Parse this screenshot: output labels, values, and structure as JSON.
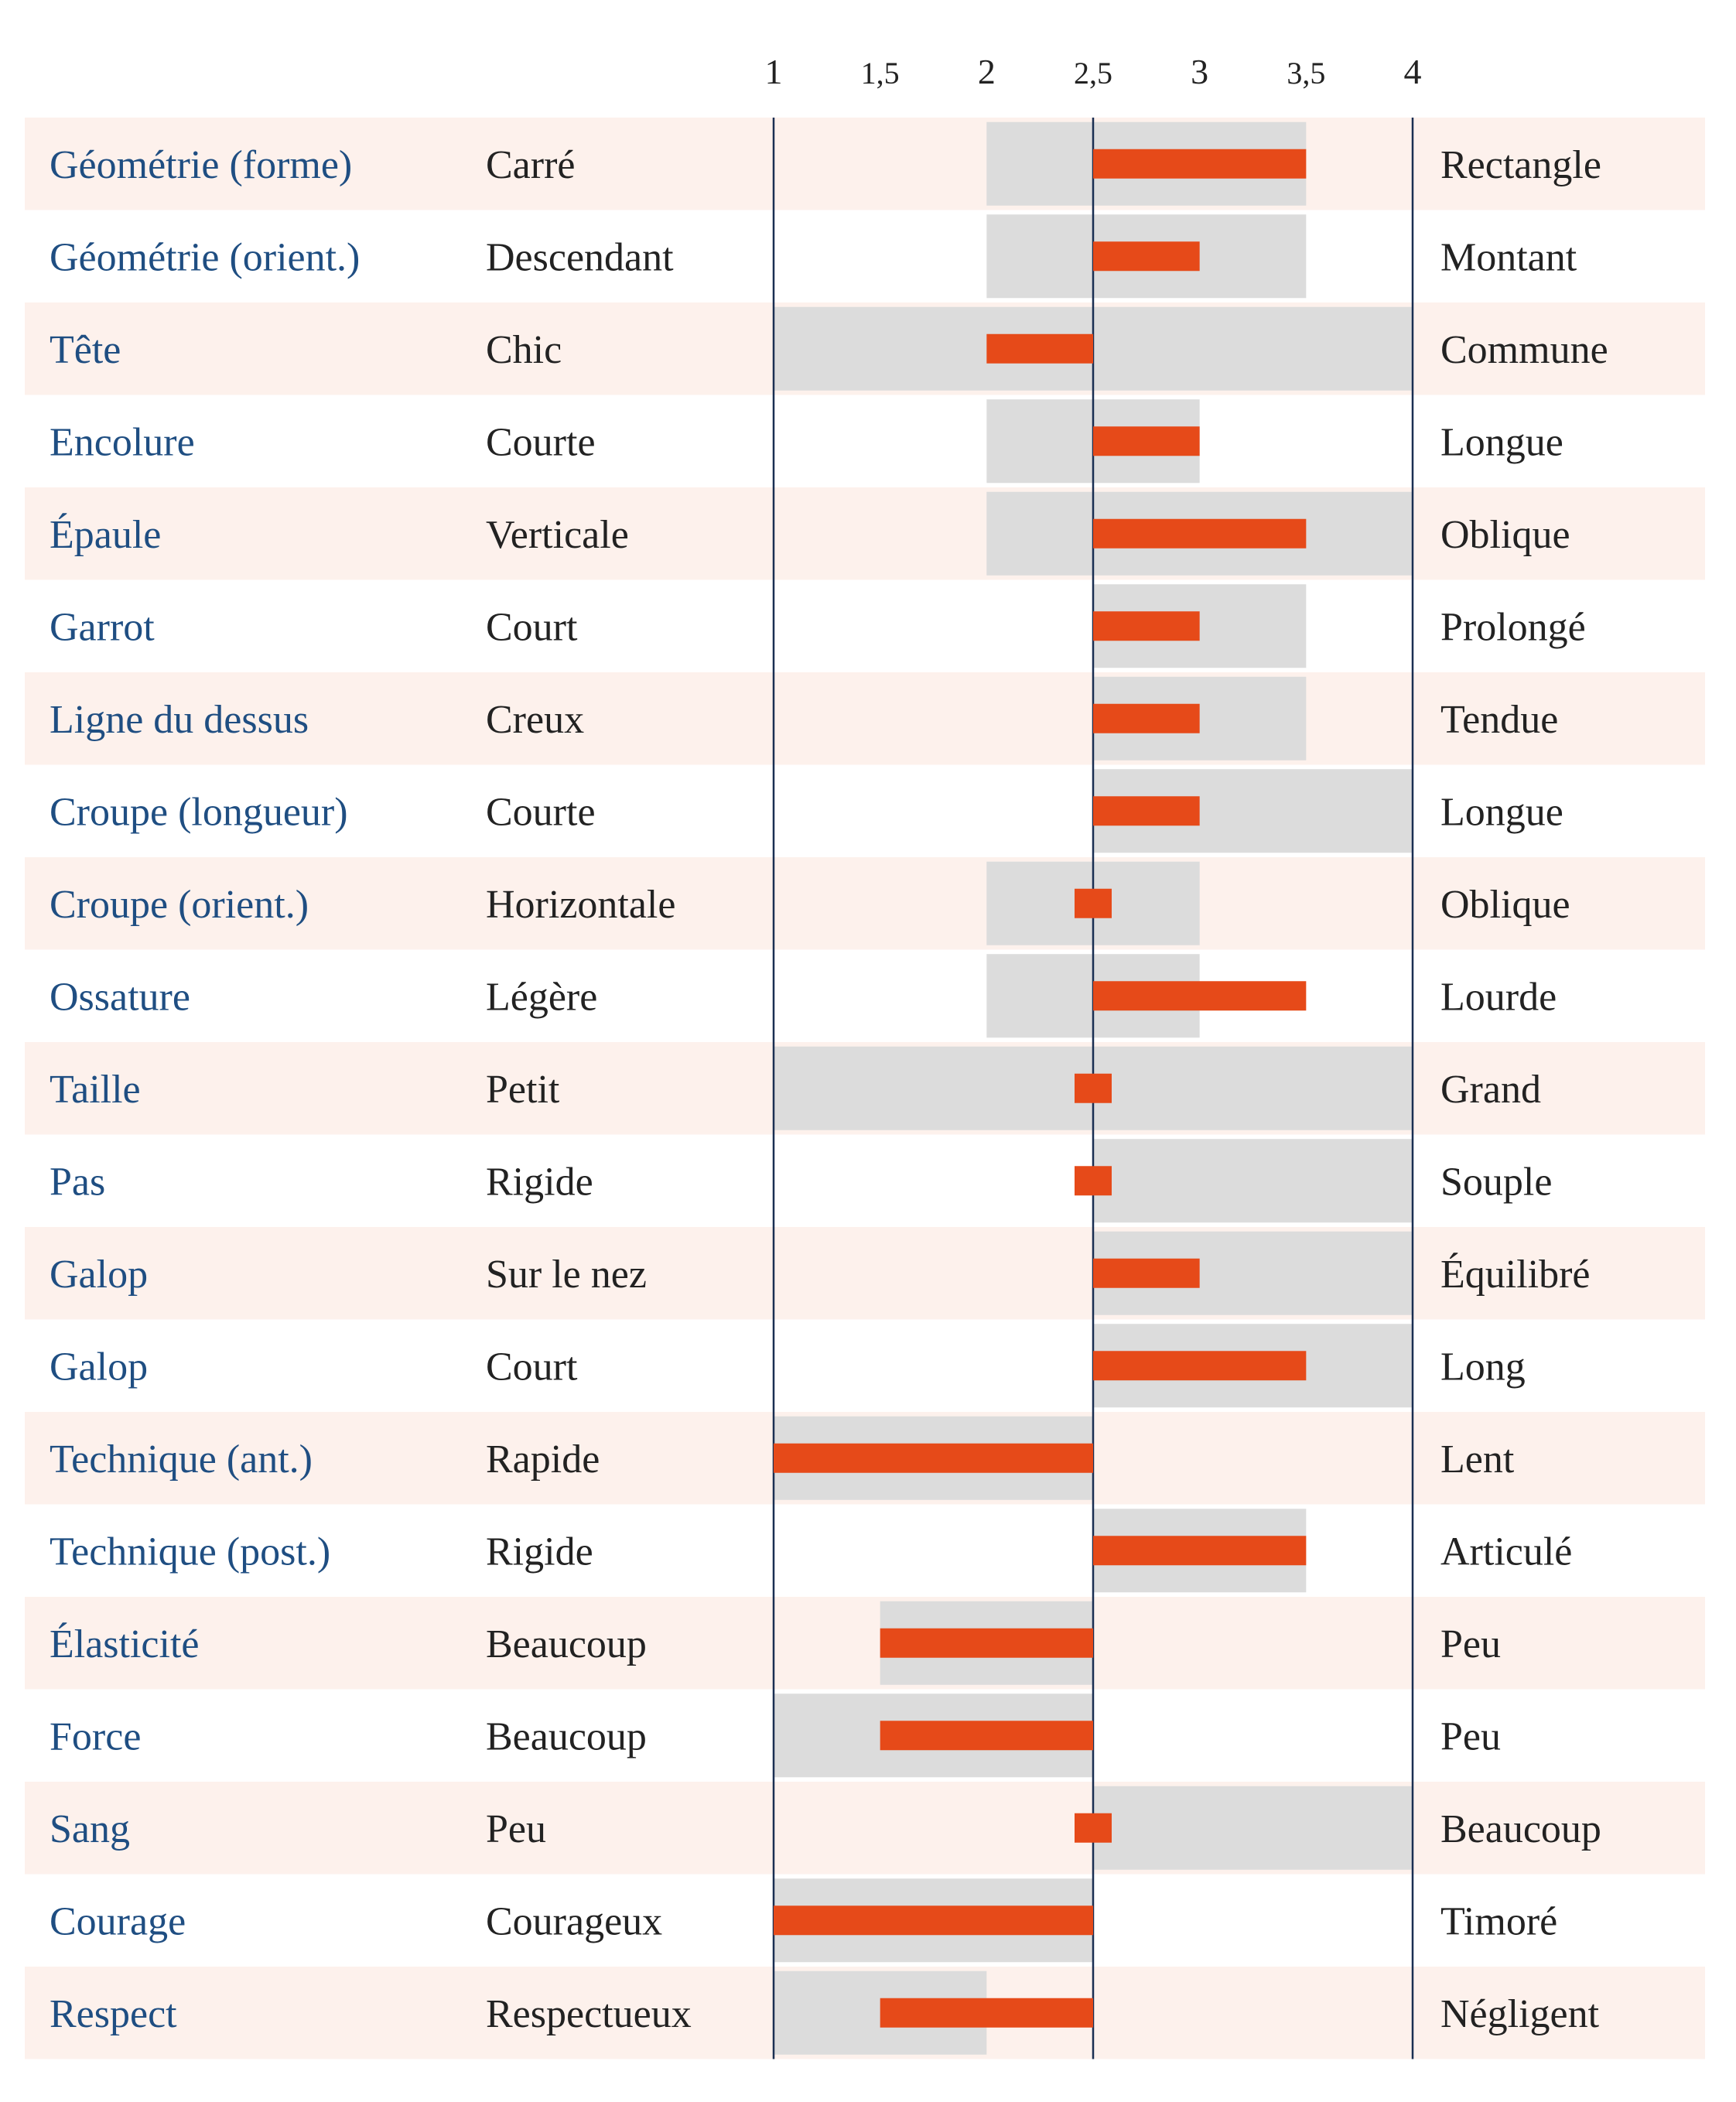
{
  "chart_data": {
    "type": "bar",
    "xlim": [
      1,
      4
    ],
    "baseline": 2.5,
    "ticks": [
      {
        "value": 1,
        "label": "1"
      },
      {
        "value": 1.5,
        "label": "1,5"
      },
      {
        "value": 2,
        "label": "2"
      },
      {
        "value": 2.5,
        "label": "2,5"
      },
      {
        "value": 3,
        "label": "3"
      },
      {
        "value": 3.5,
        "label": "3,5"
      },
      {
        "value": 4,
        "label": "4"
      }
    ],
    "rows": [
      {
        "trait": "Géométrie (forme)",
        "left": "Carré",
        "right": "Rectangle",
        "value": 3.5,
        "range": [
          2,
          3.5
        ]
      },
      {
        "trait": "Géométrie (orient.)",
        "left": "Descendant",
        "right": "Montant",
        "value": 3,
        "range": [
          2,
          3.5
        ]
      },
      {
        "trait": "Tête",
        "left": "Chic",
        "right": "Commune",
        "value": 2,
        "range": [
          1,
          4
        ]
      },
      {
        "trait": "Encolure",
        "left": "Courte",
        "right": "Longue",
        "value": 3,
        "range": [
          2,
          3
        ]
      },
      {
        "trait": "Épaule",
        "left": "Verticale",
        "right": "Oblique",
        "value": 3.5,
        "range": [
          2,
          4
        ]
      },
      {
        "trait": "Garrot",
        "left": "Court",
        "right": "Prolongé",
        "value": 3,
        "range": [
          2.5,
          3.5
        ]
      },
      {
        "trait": "Ligne du dessus",
        "left": "Creux",
        "right": "Tendue",
        "value": 3,
        "range": [
          2.5,
          3.5
        ]
      },
      {
        "trait": "Croupe (longueur)",
        "left": "Courte",
        "right": "Longue",
        "value": 3,
        "range": [
          2.5,
          4
        ]
      },
      {
        "trait": "Croupe (orient.)",
        "left": "Horizontale",
        "right": "Oblique",
        "value": 2.5,
        "range": [
          2,
          3
        ]
      },
      {
        "trait": "Ossature",
        "left": "Légère",
        "right": "Lourde",
        "value": 3.5,
        "range": [
          2,
          3
        ]
      },
      {
        "trait": "Taille",
        "left": "Petit",
        "right": "Grand",
        "value": 2.5,
        "range": [
          1,
          4
        ]
      },
      {
        "trait": "Pas",
        "left": "Rigide",
        "right": "Souple",
        "value": 2.5,
        "range": [
          2.5,
          4
        ]
      },
      {
        "trait": "Galop",
        "left": "Sur le nez",
        "right": "Équilibré",
        "value": 3,
        "range": [
          2.5,
          4
        ]
      },
      {
        "trait": "Galop",
        "left": "Court",
        "right": "Long",
        "value": 3.5,
        "range": [
          2.5,
          4
        ]
      },
      {
        "trait": "Technique (ant.)",
        "left": "Rapide",
        "right": "Lent",
        "value": 1,
        "range": [
          1,
          2.5
        ]
      },
      {
        "trait": "Technique (post.)",
        "left": "Rigide",
        "right": "Articulé",
        "value": 3.5,
        "range": [
          2.5,
          3.5
        ]
      },
      {
        "trait": "Élasticité",
        "left": "Beaucoup",
        "right": "Peu",
        "value": 1.5,
        "range": [
          1.5,
          2.5
        ]
      },
      {
        "trait": "Force",
        "left": "Beaucoup",
        "right": "Peu",
        "value": 1.5,
        "range": [
          1,
          2.5
        ]
      },
      {
        "trait": "Sang",
        "left": "Peu",
        "right": "Beaucoup",
        "value": 2.5,
        "range": [
          2.5,
          4
        ]
      },
      {
        "trait": "Courage",
        "left": "Courageux",
        "right": "Timoré",
        "value": 1,
        "range": [
          1,
          2.5
        ]
      },
      {
        "trait": "Respect",
        "left": "Respectueux",
        "right": "Négligent",
        "value": 1.5,
        "range": [
          1,
          2
        ]
      }
    ]
  },
  "colors": {
    "bar": "#e64a19",
    "range": "#dcdcdc",
    "stripe": "#fdf1ec",
    "axis_line": "#1a2f52",
    "trait_text": "#1f4e82",
    "text": "#222222"
  }
}
